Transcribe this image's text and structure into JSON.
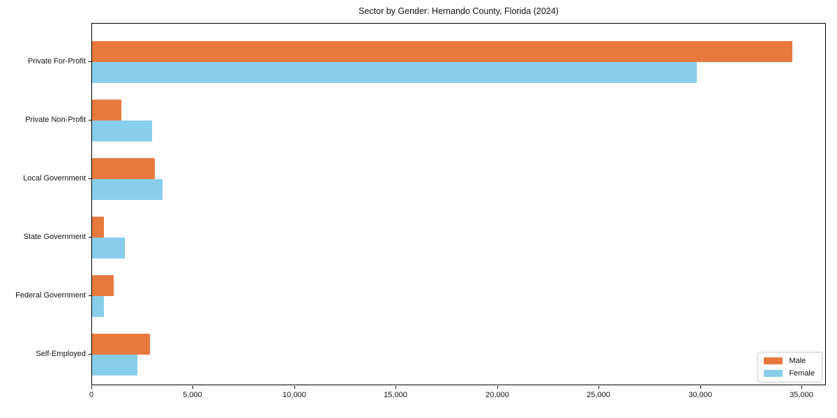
{
  "chart_data": {
    "type": "bar",
    "orientation": "horizontal",
    "title": "Sector by Gender: Hernando County, Florida (2024)",
    "categories": [
      "Private For-Profit",
      "Private Non-Profit",
      "Local Government",
      "State Government",
      "Federal Government",
      "Self-Employed"
    ],
    "series": [
      {
        "name": "Male",
        "color": "#e8793d",
        "values": [
          34500,
          1460,
          3080,
          600,
          1050,
          2840
        ]
      },
      {
        "name": "Female",
        "color": "#87ceeb",
        "values": [
          29800,
          2940,
          3460,
          1600,
          570,
          2250
        ]
      }
    ],
    "xlabel": "",
    "ylabel": "",
    "xlim": [
      0,
      36200
    ],
    "xticks": [
      0,
      5000,
      10000,
      15000,
      20000,
      25000,
      30000,
      35000
    ],
    "grid": false,
    "legend_position": "lower right",
    "axis_color": "#000000"
  }
}
